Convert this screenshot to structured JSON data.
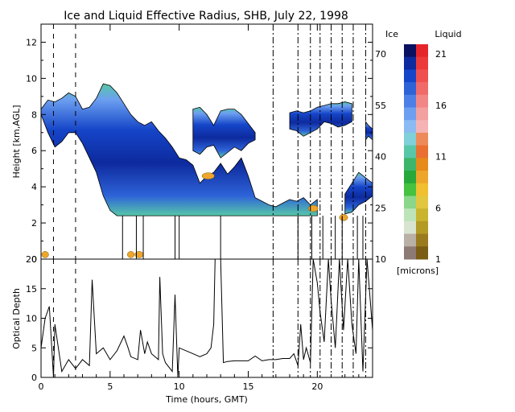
{
  "chart_data": [
    {
      "type": "heatmap",
      "title": "Ice and Liquid Effective Radius, SHB, July 22, 1998",
      "xlim": [
        0,
        24
      ],
      "ylim": [
        0,
        13
      ],
      "ylabel": "Height [km,AGL]",
      "yticks": [
        "0",
        "2",
        "4",
        "6",
        "8",
        "10",
        "12"
      ],
      "xticks": [
        "0",
        "5",
        "10",
        "15",
        "20"
      ],
      "dashed_times": [
        0.9,
        2.5
      ],
      "dashdot_times": [
        16.8,
        18.6,
        19.5,
        20.2,
        21.0,
        21.8,
        22.6,
        23.5
      ],
      "legend": {
        "ice_label": "Ice",
        "liquid_label": "Liquid",
        "units_label": "[microns]",
        "ice_ticks": [
          "70",
          "55",
          "40",
          "25",
          "10"
        ],
        "liquid_ticks": [
          "21",
          "16",
          "11",
          "6",
          "1"
        ],
        "colors": [
          "#0a1160",
          "#0d2a9e",
          "#1545c8",
          "#2e63d8",
          "#4c80e6",
          "#6c9ff0",
          "#8cbaf2",
          "#7fd0d8",
          "#57c7a8",
          "#3db56a",
          "#28a83a",
          "#45c23f",
          "#8ad68a",
          "#bde4b8",
          "#d8e4d0",
          "#b9b0a6",
          "#8e7a74"
        ],
        "liquid_colors": [
          "#e6252a",
          "#ec3a3a",
          "#ef5050",
          "#f06a6a",
          "#f28686",
          "#f2a0a0",
          "#f5b3b3",
          "#ee8a5a",
          "#e97030",
          "#e68a1a",
          "#eea62a",
          "#f0c030",
          "#e2c640",
          "#c9b430",
          "#b39a25",
          "#9a7a1e",
          "#7a5c14"
        ]
      },
      "ice_layers": [
        {
          "t": [
            0.0,
            0.5,
            1.0,
            1.5,
            2.0,
            2.5,
            3.0,
            3.5,
            4.0,
            4.5,
            5.0,
            5.5,
            6.0,
            6.5,
            7.0,
            7.5,
            8.0,
            8.5,
            9.0,
            9.5,
            10.0,
            10.5,
            11.0,
            11.5,
            12.0,
            12.5,
            13.0,
            13.5,
            14.0,
            14.5,
            15.0,
            15.5,
            16.0,
            16.5,
            17.0,
            17.5,
            18.0,
            18.5,
            19.0,
            19.5,
            20.0
          ],
          "top": [
            8.3,
            8.8,
            8.7,
            8.9,
            9.2,
            9.0,
            8.3,
            8.4,
            8.9,
            9.7,
            9.6,
            9.2,
            8.6,
            8.0,
            7.6,
            7.4,
            7.6,
            7.1,
            6.7,
            6.2,
            5.6,
            5.5,
            5.2,
            4.2,
            4.6,
            4.8,
            5.3,
            4.7,
            5.1,
            5.6,
            4.6,
            3.4,
            3.2,
            3.0,
            2.9,
            3.1,
            3.3,
            3.2,
            3.4,
            3.0,
            3.3
          ],
          "base": [
            8.0,
            7.0,
            6.2,
            6.5,
            7.0,
            7.0,
            6.4,
            5.6,
            4.8,
            3.5,
            2.7,
            2.4,
            2.4,
            2.4,
            2.4,
            2.4,
            2.4,
            2.4,
            2.4,
            2.4,
            2.4,
            2.4,
            2.4,
            2.4,
            2.4,
            2.4,
            2.4,
            2.4,
            2.4,
            2.4,
            2.4,
            2.4,
            2.4,
            2.4,
            2.4,
            2.4,
            2.4,
            2.4,
            2.4,
            2.4,
            2.4
          ]
        },
        {
          "t": [
            11.0,
            11.5,
            12.0,
            12.5,
            13.0,
            13.5,
            14.0,
            14.5,
            15.0,
            15.5
          ],
          "top": [
            8.3,
            8.4,
            8.0,
            7.4,
            8.2,
            8.3,
            8.3,
            8.0,
            7.5,
            7.0
          ],
          "base": [
            6.0,
            5.8,
            6.2,
            6.3,
            5.6,
            5.9,
            6.2,
            6.0,
            6.4,
            6.6
          ]
        },
        {
          "t": [
            18.0,
            18.5,
            19.0,
            19.5,
            20.0,
            20.5,
            21.0,
            21.5,
            22.0,
            22.5
          ],
          "top": [
            8.1,
            8.2,
            8.1,
            8.2,
            8.4,
            8.5,
            8.6,
            8.6,
            8.7,
            8.6
          ],
          "base": [
            7.2,
            7.1,
            6.8,
            7.0,
            7.2,
            7.6,
            7.5,
            7.3,
            7.4,
            7.6
          ]
        },
        {
          "t": [
            22.0,
            22.5,
            23.0,
            23.5,
            24.0
          ],
          "top": [
            3.6,
            4.2,
            4.8,
            4.5,
            4.2
          ],
          "base": [
            2.5,
            2.6,
            3.0,
            3.2,
            3.5
          ]
        },
        {
          "t": [
            23.5,
            23.7,
            24.0
          ],
          "top": [
            7.6,
            7.4,
            7.2
          ],
          "base": [
            6.6,
            6.8,
            6.6
          ]
        }
      ],
      "liquid_patches": [
        {
          "t": 12.1,
          "h": 4.6,
          "w": 0.9
        },
        {
          "t": 19.7,
          "h": 2.8,
          "w": 0.7
        },
        {
          "t": 21.9,
          "h": 2.3,
          "w": 0.6
        },
        {
          "t": 0.3,
          "h": 0.25,
          "w": 0.5
        },
        {
          "t": 6.5,
          "h": 0.25,
          "w": 0.5
        },
        {
          "t": 7.1,
          "h": 0.25,
          "w": 0.6
        }
      ],
      "cloud_base_vertical_times": [
        5.9,
        6.9,
        7.4,
        9.7,
        10.0,
        13.0,
        18.6,
        19.6,
        20.4,
        21.3,
        21.8,
        22.9,
        23.3
      ]
    },
    {
      "type": "line",
      "ylabel": "Optical Depth",
      "xlabel": "Time (hours, GMT)",
      "xlim": [
        0,
        24
      ],
      "ylim": [
        0,
        20
      ],
      "xticks": [
        "0",
        "5",
        "10",
        "15",
        "20"
      ],
      "yticks": [
        "0",
        "5",
        "10",
        "15",
        "20"
      ],
      "x": [
        0.0,
        0.3,
        0.6,
        0.9,
        1.0,
        1.5,
        2.0,
        2.5,
        3.0,
        3.5,
        3.7,
        4.0,
        4.5,
        5.0,
        5.5,
        6.0,
        6.3,
        6.5,
        7.0,
        7.2,
        7.5,
        7.7,
        8.0,
        8.5,
        8.6,
        8.8,
        9.0,
        9.5,
        9.7,
        9.9,
        10.0,
        10.5,
        11.0,
        11.5,
        12.0,
        12.3,
        12.5,
        12.6,
        13.0,
        13.2,
        13.5,
        14.0,
        15.0,
        15.5,
        16.0,
        16.5,
        17.0,
        17.5,
        18.0,
        18.3,
        18.6,
        18.8,
        19.0,
        19.2,
        19.5,
        19.7,
        20.0,
        20.2,
        20.5,
        20.8,
        21.0,
        21.3,
        21.6,
        21.9,
        22.2,
        22.5,
        22.8,
        23.0,
        23.3,
        23.6,
        24.0
      ],
      "y": [
        5.0,
        10.0,
        12.0,
        0.0,
        9.0,
        1.0,
        3.0,
        1.5,
        3.0,
        2.0,
        16.5,
        4.0,
        5.0,
        3.0,
        4.5,
        7.0,
        5.0,
        3.5,
        3.0,
        8.0,
        4.0,
        6.0,
        4.0,
        3.0,
        17.0,
        4.0,
        2.5,
        1.0,
        14.0,
        0.0,
        5.0,
        4.5,
        4.0,
        3.5,
        4.0,
        5.0,
        9.0,
        20.0,
        20.0,
        2.5,
        2.7,
        2.8,
        2.8,
        3.6,
        2.8,
        3.0,
        3.0,
        3.2,
        3.2,
        4.0,
        2.0,
        9.0,
        3.0,
        5.0,
        2.5,
        20.0,
        16.0,
        11.0,
        6.0,
        20.0,
        13.0,
        5.0,
        20.0,
        8.0,
        20.0,
        9.0,
        4.0,
        20.0,
        1.0,
        20.0,
        8.0
      ]
    }
  ]
}
